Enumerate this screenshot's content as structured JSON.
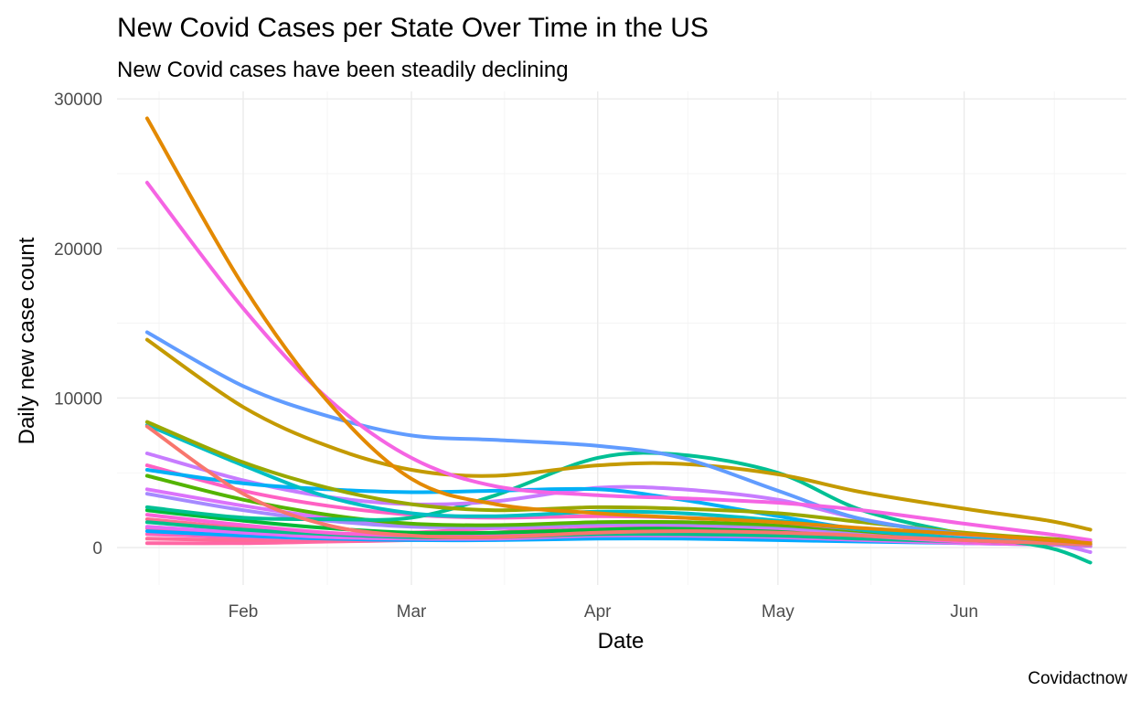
{
  "chart_data": {
    "type": "line",
    "title": "New Covid Cases per State Over Time in the US",
    "subtitle": "New Covid cases have been steadily declining",
    "xlabel": "Date",
    "ylabel": "Daily new case count",
    "caption": "Covidactnow",
    "x_ticks": [
      "Feb",
      "Mar",
      "Apr",
      "May",
      "Jun"
    ],
    "y_ticks": [
      "0",
      "10000",
      "20000",
      "30000"
    ],
    "ylim": [
      -2500,
      30500
    ],
    "xlim": [
      "2021-01-11",
      "2021-06-28"
    ],
    "legend": "none",
    "grid": true,
    "x": [
      "2021-01-16",
      "2021-02-01",
      "2021-02-15",
      "2021-03-01",
      "2021-03-15",
      "2021-04-01",
      "2021-04-15",
      "2021-05-01",
      "2021-05-15",
      "2021-06-01",
      "2021-06-15",
      "2021-06-22"
    ],
    "series": [
      {
        "color": "#E38900",
        "values": [
          28700,
          17500,
          9800,
          4600,
          2900,
          2300,
          2000,
          1700,
          1300,
          900,
          500,
          300
        ]
      },
      {
        "color": "#F564E3",
        "values": [
          24400,
          16000,
          10000,
          6000,
          4100,
          3500,
          3300,
          3000,
          2500,
          1600,
          900,
          500
        ]
      },
      {
        "color": "#619CFF",
        "values": [
          14400,
          10800,
          8800,
          7500,
          7200,
          6800,
          6000,
          3800,
          1900,
          900,
          500,
          300
        ]
      },
      {
        "color": "#C49A00",
        "values": [
          13900,
          9400,
          6800,
          5200,
          4800,
          5500,
          5600,
          4900,
          3700,
          2600,
          1800,
          1200
        ]
      },
      {
        "color": "#99A800",
        "values": [
          8400,
          5700,
          4000,
          2900,
          2500,
          2700,
          2600,
          2300,
          1700,
          1000,
          600,
          400
        ]
      },
      {
        "color": "#F8766D",
        "values": [
          8100,
          3600,
          1500,
          800,
          700,
          1000,
          1100,
          1000,
          800,
          500,
          300,
          200
        ]
      },
      {
        "color": "#00BFC4",
        "values": [
          8200,
          5500,
          3400,
          2300,
          2100,
          2400,
          2300,
          1800,
          1200,
          600,
          300,
          200
        ]
      },
      {
        "color": "#00B0F6",
        "values": [
          5200,
          4300,
          3900,
          3700,
          3800,
          3900,
          3200,
          2100,
          1200,
          600,
          400,
          300
        ]
      },
      {
        "color": "#C77CFF",
        "values": [
          6300,
          4500,
          3400,
          2900,
          3100,
          4000,
          3900,
          3200,
          1900,
          800,
          300,
          -300
        ]
      },
      {
        "color": "#00C094",
        "values": [
          2700,
          2000,
          1900,
          2000,
          3500,
          6000,
          6200,
          5000,
          2500,
          900,
          0,
          -1000
        ]
      },
      {
        "color": "#FF61C3",
        "values": [
          5500,
          3800,
          2800,
          2200,
          2000,
          2100,
          2000,
          1700,
          1200,
          700,
          400,
          200
        ]
      },
      {
        "color": "#53B400",
        "values": [
          4800,
          3200,
          2200,
          1600,
          1500,
          1700,
          1700,
          1500,
          1100,
          600,
          300,
          200
        ]
      },
      {
        "color": "#A58AFF",
        "values": [
          3600,
          2500,
          1800,
          1400,
          1400,
          1600,
          1600,
          1400,
          1000,
          600,
          300,
          200
        ]
      },
      {
        "color": "#DB72FB",
        "values": [
          3900,
          2800,
          2000,
          1500,
          1300,
          1500,
          1500,
          1300,
          900,
          500,
          300,
          100
        ]
      },
      {
        "color": "#00BA38",
        "values": [
          2500,
          1800,
          1300,
          1000,
          1000,
          1200,
          1300,
          1200,
          900,
          500,
          300,
          200
        ]
      },
      {
        "color": "#FB61D7",
        "values": [
          2200,
          1500,
          1000,
          800,
          900,
          1300,
          1400,
          1200,
          800,
          400,
          200,
          100
        ]
      },
      {
        "color": "#00C08B",
        "values": [
          1700,
          1200,
          900,
          700,
          700,
          900,
          900,
          800,
          600,
          400,
          200,
          100
        ]
      },
      {
        "color": "#E76BF3",
        "values": [
          1400,
          1000,
          700,
          600,
          600,
          800,
          800,
          700,
          500,
          300,
          200,
          100
        ]
      },
      {
        "color": "#00A9FF",
        "values": [
          1100,
          800,
          600,
          500,
          500,
          600,
          600,
          500,
          400,
          300,
          200,
          100
        ]
      },
      {
        "color": "#FF6C91",
        "values": [
          1900,
          1300,
          900,
          800,
          1000,
          1600,
          1700,
          1400,
          900,
          500,
          300,
          200
        ]
      },
      {
        "color": "#FF62BC",
        "values": [
          900,
          700,
          600,
          700,
          900,
          1200,
          1300,
          1100,
          800,
          500,
          300,
          200
        ]
      },
      {
        "color": "#FF6A98",
        "values": [
          600,
          500,
          500,
          600,
          800,
          1000,
          1100,
          900,
          700,
          400,
          300,
          200
        ]
      },
      {
        "color": "#FF64B0",
        "values": [
          1300,
          1000,
          900,
          1000,
          1300,
          1500,
          1400,
          1200,
          900,
          500,
          300,
          200
        ]
      },
      {
        "color": "#FF67A4",
        "values": [
          300,
          300,
          400,
          500,
          700,
          900,
          1000,
          800,
          600,
          400,
          300,
          200
        ]
      }
    ]
  }
}
